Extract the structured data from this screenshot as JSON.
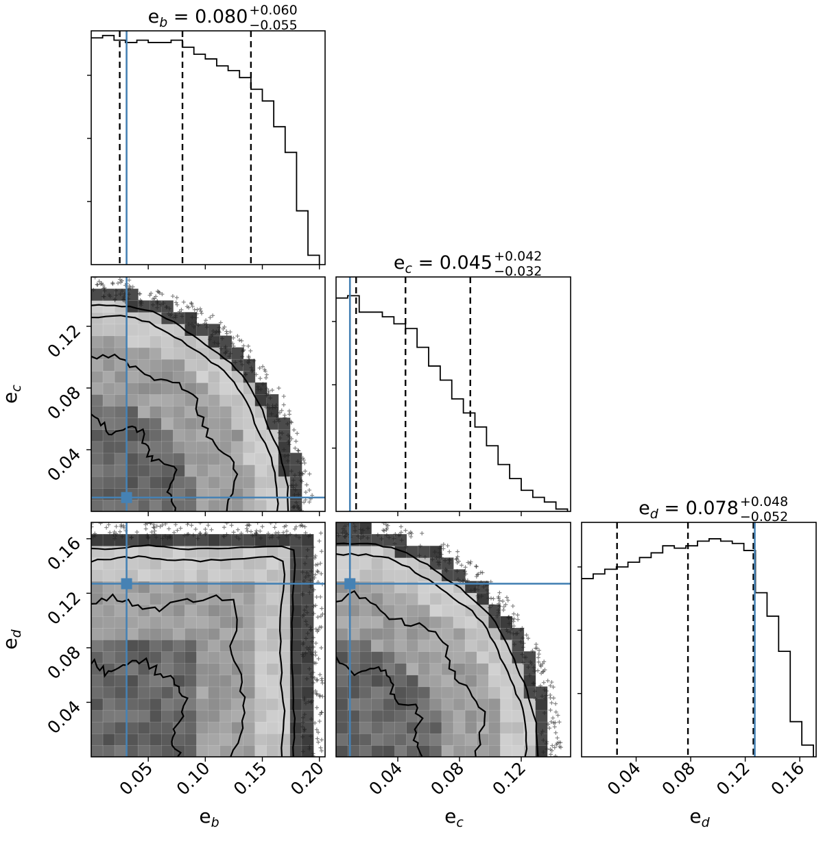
{
  "chart_data": {
    "type": "corner",
    "parameters": [
      "e_b",
      "e_c",
      "e_d"
    ],
    "truth_color": "#4682b4",
    "truths": {
      "e_b": 0.031,
      "e_c": 0.009,
      "e_d": 0.127
    },
    "panels": {
      "hist_b": {
        "title": {
          "base": "e",
          "sub": "b",
          "value": " = 0.080",
          "plus": "+0.060",
          "minus": "−0.055"
        },
        "bin_edges": [
          0.0,
          0.01,
          0.02,
          0.03,
          0.04,
          0.05,
          0.06,
          0.07,
          0.08,
          0.09,
          0.1,
          0.11,
          0.12,
          0.13,
          0.14,
          0.15,
          0.16,
          0.17,
          0.18,
          0.19,
          0.2
        ],
        "counts": [
          0.97,
          0.98,
          0.96,
          0.95,
          0.96,
          0.95,
          0.95,
          0.96,
          0.93,
          0.9,
          0.88,
          0.85,
          0.83,
          0.8,
          0.75,
          0.7,
          0.59,
          0.48,
          0.23,
          0.04
        ],
        "quantiles": [
          0.025,
          0.08,
          0.14
        ],
        "xlim": [
          0.0,
          0.205
        ],
        "ylim": [
          0,
          1.0
        ]
      },
      "hist_c": {
        "title": {
          "base": "e",
          "sub": "c",
          "value": " = 0.045",
          "plus": "+0.042",
          "minus": "−0.032"
        },
        "bin_edges": [
          0.0,
          0.0075,
          0.015,
          0.0225,
          0.03,
          0.0375,
          0.045,
          0.0525,
          0.06,
          0.0675,
          0.075,
          0.0825,
          0.09,
          0.0975,
          0.105,
          0.1125,
          0.12,
          0.1275,
          0.135,
          0.1425,
          0.15
        ],
        "counts": [
          0.91,
          0.92,
          0.85,
          0.85,
          0.83,
          0.8,
          0.78,
          0.7,
          0.62,
          0.56,
          0.48,
          0.42,
          0.36,
          0.28,
          0.2,
          0.14,
          0.09,
          0.06,
          0.04,
          0.01
        ],
        "quantiles": [
          0.013,
          0.045,
          0.087
        ],
        "xlim": [
          0.0,
          0.152
        ],
        "ylim": [
          0,
          1.0
        ]
      },
      "hist_d": {
        "title": {
          "base": "e",
          "sub": "d",
          "value": " = 0.078",
          "plus": "+0.048",
          "minus": "−0.052"
        },
        "bin_edges": [
          0.0,
          0.0085,
          0.017,
          0.0255,
          0.034,
          0.0425,
          0.051,
          0.0595,
          0.068,
          0.0765,
          0.085,
          0.0935,
          0.102,
          0.1105,
          0.119,
          0.1275,
          0.136,
          0.1445,
          0.153,
          0.1615,
          0.17
        ],
        "counts": [
          0.76,
          0.78,
          0.8,
          0.81,
          0.83,
          0.85,
          0.87,
          0.9,
          0.89,
          0.9,
          0.92,
          0.93,
          0.92,
          0.91,
          0.88,
          0.7,
          0.6,
          0.45,
          0.15,
          0.05
        ],
        "quantiles": [
          0.026,
          0.078,
          0.126
        ],
        "xlim": [
          0.0,
          0.172
        ],
        "ylim": [
          0,
          1.0
        ]
      },
      "density_cb": {
        "x": "e_b",
        "y": "e_c",
        "xlim": [
          0.0,
          0.205
        ],
        "ylim": [
          0.0,
          0.152
        ]
      },
      "density_db": {
        "x": "e_b",
        "y": "e_d",
        "xlim": [
          0.0,
          0.205
        ],
        "ylim": [
          0.0,
          0.172
        ]
      },
      "density_dc": {
        "x": "e_c",
        "y": "e_d",
        "xlim": [
          0.0,
          0.152
        ],
        "ylim": [
          0.0,
          0.172
        ]
      }
    },
    "axis_labels": {
      "e_b": {
        "base": "e",
        "sub": "b"
      },
      "e_c": {
        "base": "e",
        "sub": "c"
      },
      "e_d": {
        "base": "e",
        "sub": "d"
      }
    },
    "ticks": {
      "e_b_x": [
        "0.05",
        "0.10",
        "0.15",
        "0.20"
      ],
      "e_c_x": [
        "0.04",
        "0.08",
        "0.12"
      ],
      "e_d_x": [
        "0.04",
        "0.08",
        "0.12",
        "0.16"
      ],
      "e_c_y": [
        "0.04",
        "0.08",
        "0.12"
      ],
      "e_d_y": [
        "0.04",
        "0.08",
        "0.12",
        "0.16"
      ]
    }
  }
}
